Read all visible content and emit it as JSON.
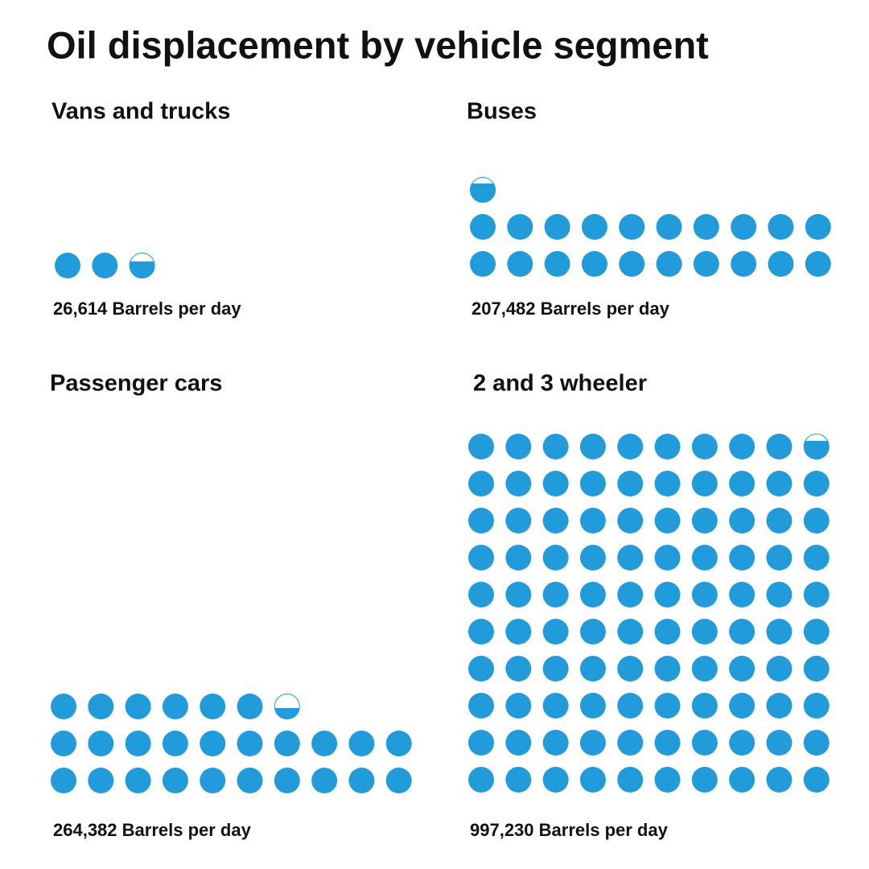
{
  "title": "Oil displacement by vehicle segment",
  "chart_data": [
    {
      "type": "pictogram",
      "title": "Vans and trucks",
      "color": "#229bdb",
      "value": 26614,
      "value_label": "26,614 Barrels per day"
    },
    {
      "type": "pictogram",
      "title": "Buses",
      "color": "#229bdb",
      "value": 207482,
      "value_label": "207,482 Barrels per day"
    },
    {
      "type": "pictogram",
      "title": "Passenger cars",
      "color": "#229bdb",
      "value": 264382,
      "value_label": "264,382 Barrels per day"
    },
    {
      "type": "pictogram",
      "title": "2 and 3 wheeler",
      "color": "#229bdb",
      "value": 997230,
      "value_label": "997,230 Barrels per day"
    }
  ]
}
